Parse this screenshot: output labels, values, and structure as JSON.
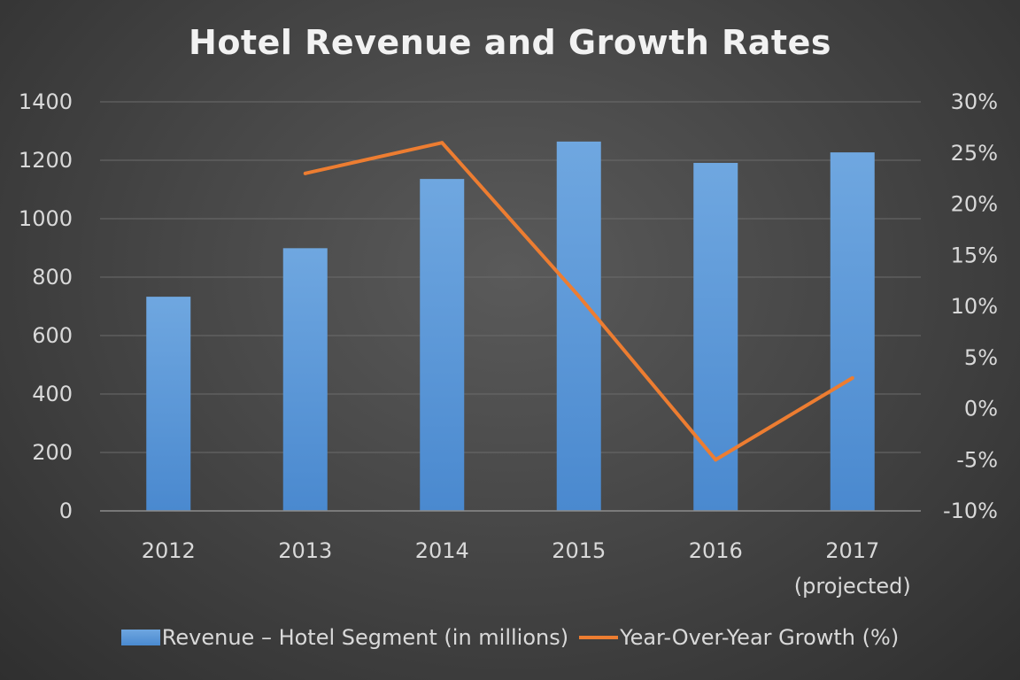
{
  "chart_data": {
    "type": "bar",
    "title": "Hotel Revenue and Growth Rates",
    "categories": [
      "2012",
      "2013",
      "2014",
      "2015",
      "2016",
      "2017\n(projected)"
    ],
    "category_lines": [
      [
        "2012"
      ],
      [
        "2013"
      ],
      [
        "2014"
      ],
      [
        "2015"
      ],
      [
        "2016"
      ],
      [
        "2017",
        "(projected)"
      ]
    ],
    "series": [
      {
        "name": "Revenue – Hotel Segment (in millions)",
        "type": "bar",
        "axis": "left",
        "color": "#5b9bd5",
        "values": [
          733,
          899,
          1136,
          1264,
          1191,
          1227
        ]
      },
      {
        "name": "Year-Over-Year Growth (%)",
        "type": "line",
        "axis": "right",
        "color": "#ed7d31",
        "values": [
          null,
          23,
          26,
          11,
          -5,
          3
        ]
      }
    ],
    "y_left": {
      "range": [
        0,
        1400
      ],
      "ticks": [
        "0",
        "200",
        "400",
        "600",
        "800",
        "1000",
        "1200",
        "1400"
      ]
    },
    "y_right": {
      "range": [
        -10,
        30
      ],
      "ticks": [
        "-10%",
        "-5%",
        "0%",
        "5%",
        "10%",
        "15%",
        "20%",
        "25%",
        "30%"
      ]
    },
    "grid": true,
    "legend_position": "bottom"
  }
}
